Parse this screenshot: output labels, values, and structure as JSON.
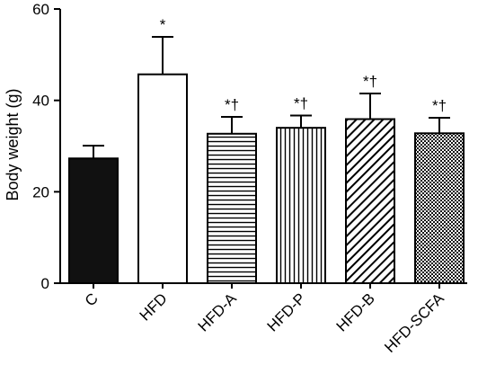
{
  "chart_data": {
    "type": "bar",
    "title": "",
    "xlabel": "",
    "ylabel": "Body weight (g)",
    "ylim": [
      0,
      60
    ],
    "yticks": [
      0,
      20,
      40,
      60
    ],
    "grid": false,
    "legend": "none",
    "categories": [
      "C",
      "HFD",
      "HFD-A",
      "HFD-P",
      "HFD-B",
      "HFD-SCFA"
    ],
    "values": [
      27.3,
      45.7,
      32.7,
      34.0,
      35.9,
      32.8
    ],
    "errors": [
      2.8,
      8.2,
      3.7,
      2.7,
      5.6,
      3.4
    ],
    "significance": [
      "",
      "*",
      "*†",
      "*†",
      "*†",
      "*†"
    ],
    "fills": [
      "solid",
      "open",
      "horizontal-lines",
      "vertical-lines",
      "diagonal-lines",
      "checkered"
    ],
    "colors": {
      "bar_solid": "#111111",
      "stroke": "#000000",
      "background": "#ffffff"
    }
  }
}
